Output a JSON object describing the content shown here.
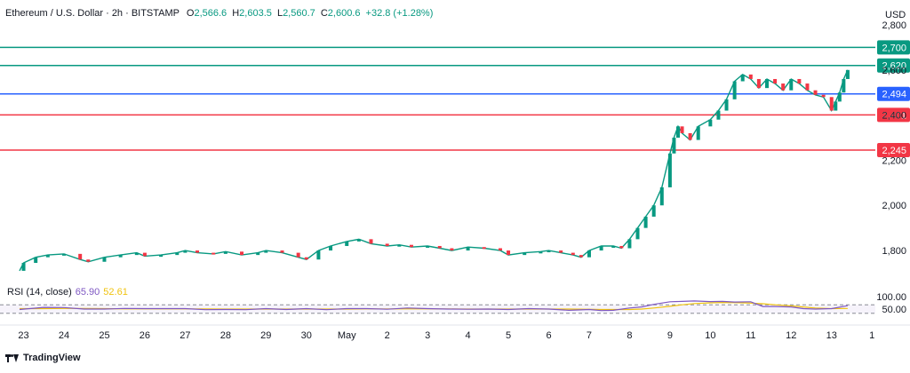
{
  "header": {
    "symbol": "Ethereum / U.S. Dollar · 2h · BITSTAMP",
    "open_label": "O",
    "open": "2,566.6",
    "high_label": "H",
    "high": "2,603.5",
    "low_label": "L",
    "low": "2,560.7",
    "close_label": "C",
    "close": "2,600.6",
    "change": "+32.8 (+1.28%)"
  },
  "currency": "USD",
  "brand": "TradingView",
  "colors": {
    "up": "#089981",
    "down": "#f23645",
    "blue_line": "#2962ff",
    "rsi": "#7e57c2",
    "rsi_ma": "#f0c30f",
    "green_line": "#089981",
    "red_line": "#f23645"
  },
  "rsi_panel": {
    "label": "RSI (14, close)",
    "rsi_value": "65.90",
    "ma_value": "52.61",
    "ticks": [
      "100.00",
      "50.00"
    ],
    "levels": [
      70,
      30
    ],
    "range": [
      0,
      100
    ]
  },
  "chart_data": {
    "type": "line",
    "title": "Ethereum / U.S. Dollar · 2h · BITSTAMP",
    "y_ticks": [
      1800,
      2000,
      2200,
      2400,
      2600,
      2800
    ],
    "ylim": [
      1690,
      2800
    ],
    "x_ticks": [
      "23",
      "24",
      "25",
      "26",
      "27",
      "28",
      "29",
      "30",
      "May",
      "2",
      "3",
      "4",
      "5",
      "6",
      "7",
      "8",
      "9",
      "10",
      "11",
      "12",
      "13",
      "1"
    ],
    "x_tick_positions": [
      0,
      1,
      2,
      3,
      4,
      5,
      6,
      7,
      8,
      9,
      10,
      11,
      12,
      13,
      14,
      15,
      16,
      17,
      18,
      19,
      20,
      21
    ],
    "xlim": [
      -0.1,
      20.6
    ],
    "levels": [
      {
        "value": 2700,
        "label": "2,700",
        "color": "#089981"
      },
      {
        "value": 2620,
        "label": "2,620",
        "color": "#089981"
      },
      {
        "value": 2494,
        "label": "2,494",
        "color": "#2962ff"
      },
      {
        "value": 2401,
        "label": "2,401",
        "color": "#f23645"
      },
      {
        "value": 2245,
        "label": "2,245",
        "color": "#f23645"
      }
    ],
    "price_series": {
      "x": [
        -0.1,
        0,
        0.3,
        0.6,
        1,
        1.4,
        1.6,
        2,
        2.4,
        2.8,
        3,
        3.4,
        3.8,
        4,
        4.3,
        4.7,
        5,
        5.4,
        5.8,
        6,
        6.4,
        6.8,
        7,
        7.3,
        7.6,
        8,
        8.3,
        8.6,
        9,
        9.3,
        9.6,
        10,
        10.3,
        10.6,
        11,
        11.4,
        11.8,
        12,
        12.4,
        12.8,
        13,
        13.3,
        13.6,
        13.8,
        14,
        14.3,
        14.6,
        14.8,
        15,
        15.2,
        15.4,
        15.6,
        15.8,
        16,
        16.1,
        16.2,
        16.3,
        16.5,
        16.7,
        17,
        17.2,
        17.4,
        17.6,
        17.8,
        18,
        18.2,
        18.4,
        18.6,
        18.8,
        19,
        19.2,
        19.4,
        19.6,
        19.8,
        20,
        20.1,
        20.2,
        20.3,
        20.4
      ],
      "close": [
        1710,
        1745,
        1770,
        1780,
        1785,
        1760,
        1750,
        1770,
        1780,
        1790,
        1775,
        1780,
        1790,
        1800,
        1790,
        1785,
        1795,
        1780,
        1790,
        1800,
        1790,
        1770,
        1760,
        1800,
        1820,
        1840,
        1850,
        1830,
        1820,
        1825,
        1815,
        1820,
        1810,
        1800,
        1815,
        1810,
        1800,
        1780,
        1790,
        1795,
        1800,
        1790,
        1780,
        1770,
        1800,
        1820,
        1820,
        1810,
        1850,
        1900,
        1950,
        2000,
        2080,
        2230,
        2300,
        2350,
        2320,
        2290,
        2350,
        2380,
        2420,
        2470,
        2550,
        2580,
        2560,
        2520,
        2560,
        2540,
        2510,
        2560,
        2540,
        2510,
        2490,
        2480,
        2420,
        2460,
        2500,
        2560,
        2600
      ]
    },
    "rsi_series": {
      "x": [
        -0.1,
        0.5,
        1,
        1.5,
        2,
        2.5,
        3,
        3.5,
        4,
        4.5,
        5,
        5.5,
        6,
        6.5,
        7,
        7.5,
        8,
        8.5,
        9,
        9.5,
        10,
        10.5,
        11,
        11.5,
        12,
        12.5,
        13,
        13.5,
        14,
        14.3,
        14.6,
        15,
        15.3,
        15.6,
        16,
        16.3,
        16.6,
        17,
        17.3,
        17.6,
        18,
        18.3,
        18.6,
        19,
        19.3,
        19.6,
        20,
        20.4
      ],
      "rsi": [
        48,
        58,
        57,
        50,
        50,
        53,
        52,
        52,
        52,
        47,
        48,
        47,
        52,
        48,
        52,
        47,
        52,
        52,
        49,
        55,
        52,
        50,
        49,
        50,
        48,
        52,
        50,
        44,
        48,
        43,
        44,
        55,
        60,
        72,
        84,
        86,
        88,
        85,
        86,
        83,
        84,
        62,
        62,
        60,
        52,
        50,
        52,
        66
      ],
      "ma": [
        52,
        52,
        53,
        53,
        52,
        51,
        51,
        51,
        51,
        51,
        50,
        50,
        50,
        50,
        50,
        50,
        50,
        51,
        51,
        51,
        51,
        51,
        50,
        50,
        50,
        50,
        50,
        50,
        49,
        48,
        48,
        48,
        50,
        55,
        63,
        70,
        76,
        79,
        81,
        80,
        78,
        75,
        70,
        65,
        60,
        55,
        52,
        53
      ]
    }
  }
}
